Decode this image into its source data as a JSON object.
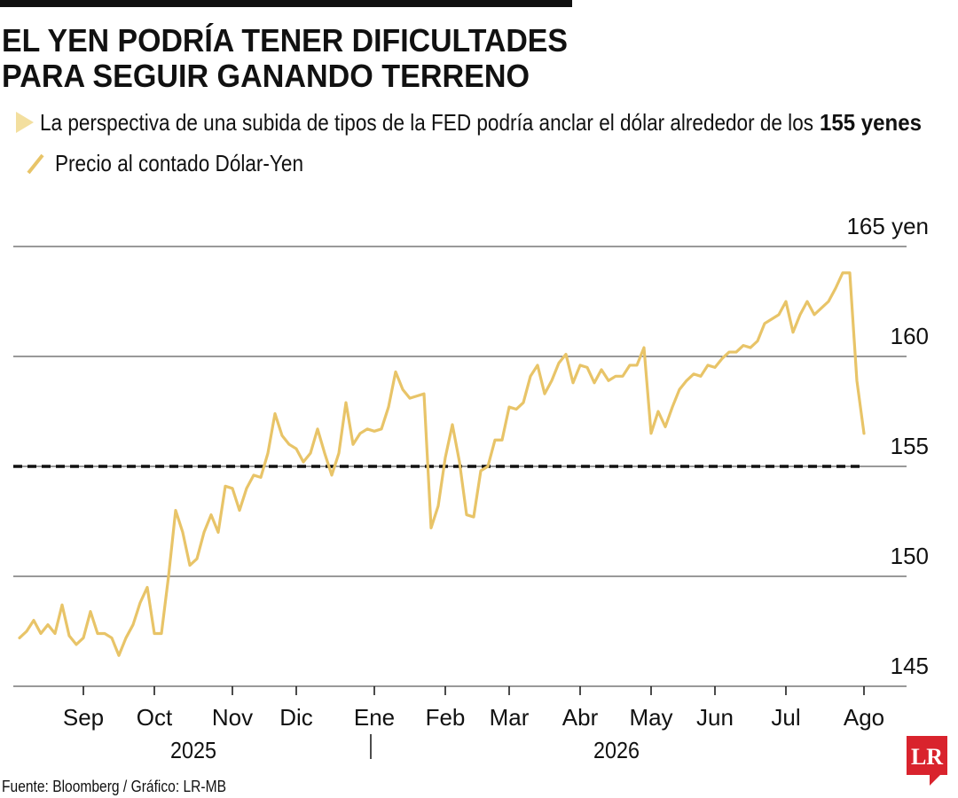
{
  "chart_data": {
    "type": "line",
    "title": [
      "EL YEN PODRÍA TENER DIFICULTADES",
      "PARA SEGUIR GANANDO TERRENO"
    ],
    "subtitle": "La perspectiva de una subida de tipos de la FED podría anclar el dólar alrededor de los",
    "subtitle_bold": "155 yenes",
    "source": "Fuente: Bloomberg / Gráfico: LR-MB",
    "logo": "LR",
    "year_labels": [
      "2025",
      "2026"
    ],
    "categories": [
      null,
      null,
      null,
      null,
      null,
      null,
      null,
      null,
      null,
      "Sep",
      null,
      null,
      null,
      null,
      null,
      null,
      null,
      null,
      null,
      "Oct",
      null,
      null,
      null,
      null,
      null,
      null,
      null,
      null,
      null,
      null,
      "Nov",
      null,
      null,
      null,
      null,
      null,
      null,
      null,
      null,
      "Dic",
      null,
      null,
      null,
      null,
      null,
      null,
      null,
      null,
      null,
      null,
      "Ene",
      null,
      null,
      null,
      null,
      null,
      null,
      null,
      null,
      null,
      "Feb",
      null,
      null,
      null,
      null,
      null,
      null,
      null,
      null,
      "Mar",
      null,
      null,
      null,
      null,
      null,
      null,
      null,
      null,
      null,
      "Abr",
      null,
      null,
      null,
      null,
      null,
      null,
      null,
      null,
      null,
      "May",
      null,
      null,
      null,
      null,
      null,
      null,
      null,
      null,
      "Jun",
      null,
      null,
      null,
      null,
      null,
      null,
      null,
      null,
      null,
      "Jul",
      null,
      null,
      null,
      null,
      null,
      null,
      null,
      null,
      null,
      null,
      "Ago"
    ],
    "series": [
      {
        "name": "Precio al contado Dólar-Yen",
        "color": "#e8c468",
        "values": [
          147.2,
          147.5,
          148.0,
          147.4,
          147.8,
          147.4,
          148.7,
          147.3,
          146.9,
          147.2,
          148.4,
          147.4,
          147.4,
          147.2,
          146.4,
          147.2,
          147.8,
          148.8,
          149.5,
          147.4,
          147.4,
          150.0,
          153.0,
          152.0,
          150.5,
          150.8,
          152.0,
          152.8,
          152.0,
          154.1,
          154.0,
          153.0,
          154.0,
          154.6,
          154.5,
          155.6,
          157.4,
          156.4,
          156.0,
          155.8,
          155.2,
          155.6,
          156.7,
          155.6,
          154.6,
          155.6,
          157.9,
          156.0,
          156.5,
          156.7,
          156.6,
          156.7,
          157.7,
          159.3,
          158.5,
          158.1,
          158.2,
          158.3,
          152.2,
          153.2,
          155.4,
          156.9,
          155.2,
          152.8,
          152.7,
          154.8,
          155.0,
          156.2,
          156.2,
          157.7,
          157.6,
          157.9,
          159.1,
          159.6,
          158.3,
          158.9,
          159.7,
          160.1,
          158.8,
          159.6,
          159.5,
          158.8,
          159.4,
          158.9,
          159.1,
          159.1,
          159.6,
          159.6,
          160.4,
          156.5,
          157.5,
          156.8,
          157.7,
          158.5,
          158.9,
          159.2,
          159.1,
          159.6,
          159.5,
          159.9,
          160.2,
          160.2,
          160.5,
          160.4,
          160.7,
          161.5,
          161.7,
          161.9,
          162.5,
          161.1,
          161.9,
          162.5,
          161.9,
          162.2,
          162.5,
          163.1,
          163.8,
          163.8,
          158.9,
          156.5
        ]
      }
    ],
    "reference_line": 155,
    "ylim": [
      145,
      165
    ],
    "yticks": [
      145,
      150,
      155,
      160,
      {
        "value": 165,
        "label": "165 yen"
      }
    ],
    "grid": true
  }
}
